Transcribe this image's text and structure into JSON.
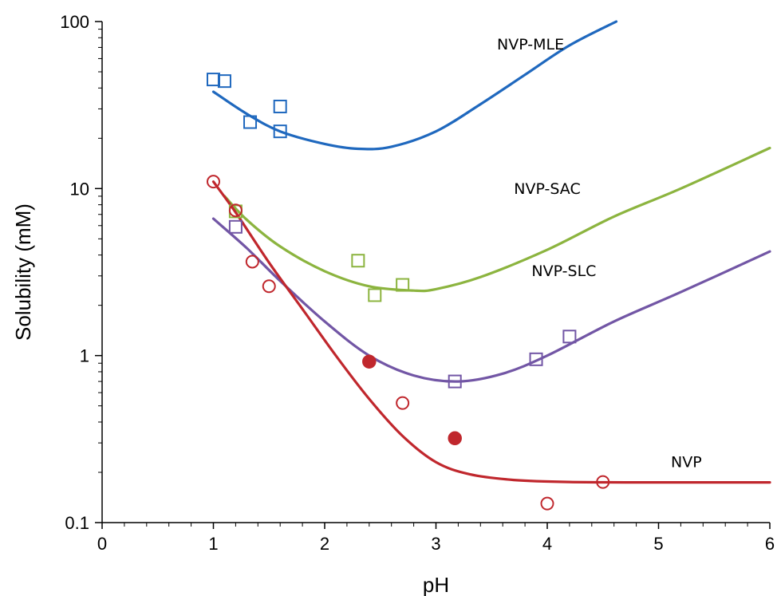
{
  "chart_data": {
    "type": "scatter",
    "title": "",
    "xlabel": "pH",
    "ylabel": "Solubility (mM)",
    "xlim": [
      0,
      6
    ],
    "ylim": [
      0.1,
      100
    ],
    "yscale": "log",
    "xticks": [
      "0",
      "1",
      "2",
      "3",
      "4",
      "5",
      "6"
    ],
    "yticks": [
      "0.1",
      "1",
      "10",
      "100"
    ],
    "grid": false,
    "legend": "none",
    "series": [
      {
        "name": "NVP-MLE",
        "color": "#1f68be",
        "marker": "open-square",
        "points": [
          [
            1.0,
            45
          ],
          [
            1.1,
            44
          ],
          [
            1.33,
            25
          ],
          [
            1.6,
            31
          ],
          [
            1.6,
            22
          ]
        ],
        "curve": [
          [
            1.0,
            38
          ],
          [
            1.3,
            28
          ],
          [
            1.6,
            22
          ],
          [
            2.0,
            18.5
          ],
          [
            2.3,
            17.3
          ],
          [
            2.6,
            17.8
          ],
          [
            3.0,
            22
          ],
          [
            3.4,
            32
          ],
          [
            3.8,
            48
          ],
          [
            4.2,
            72
          ],
          [
            4.62,
            100
          ]
        ]
      },
      {
        "name": "NVP-SAC",
        "color": "#8cb43f",
        "marker": "open-square",
        "points": [
          [
            1.2,
            7.3
          ],
          [
            2.3,
            3.7
          ],
          [
            2.45,
            2.3
          ],
          [
            2.7,
            2.65
          ]
        ],
        "curve": [
          [
            1.1,
            9.0
          ],
          [
            1.3,
            6.5
          ],
          [
            1.6,
            4.5
          ],
          [
            2.0,
            3.2
          ],
          [
            2.4,
            2.6
          ],
          [
            2.8,
            2.45
          ],
          [
            3.0,
            2.5
          ],
          [
            3.4,
            2.95
          ],
          [
            4.0,
            4.3
          ],
          [
            4.6,
            6.8
          ],
          [
            5.2,
            10.0
          ],
          [
            6.0,
            17.5
          ]
        ]
      },
      {
        "name": "NVP-SLC",
        "color": "#7256a5",
        "marker": "open-square",
        "points": [
          [
            1.2,
            5.9
          ],
          [
            3.17,
            0.7
          ],
          [
            3.9,
            0.95
          ],
          [
            4.2,
            1.3
          ]
        ],
        "curve": [
          [
            1.0,
            6.6
          ],
          [
            1.3,
            4.4
          ],
          [
            1.6,
            2.8
          ],
          [
            2.0,
            1.6
          ],
          [
            2.4,
            1.0
          ],
          [
            2.8,
            0.76
          ],
          [
            3.2,
            0.7
          ],
          [
            3.6,
            0.78
          ],
          [
            4.0,
            1.0
          ],
          [
            4.6,
            1.6
          ],
          [
            5.2,
            2.4
          ],
          [
            6.0,
            4.2
          ]
        ]
      },
      {
        "name": "NVP",
        "color": "#c0272d",
        "marker": "open-circle",
        "points": [
          [
            1.0,
            11
          ],
          [
            1.2,
            7.4
          ],
          [
            1.35,
            3.65
          ],
          [
            1.5,
            2.6
          ],
          [
            2.7,
            0.52
          ],
          [
            4.0,
            0.13
          ],
          [
            4.5,
            0.175
          ]
        ],
        "filled_points": [
          [
            2.4,
            0.92
          ],
          [
            3.17,
            0.32
          ]
        ],
        "curve": [
          [
            1.0,
            11
          ],
          [
            1.2,
            7.2
          ],
          [
            1.5,
            3.6
          ],
          [
            1.8,
            1.9
          ],
          [
            2.1,
            1.0
          ],
          [
            2.4,
            0.55
          ],
          [
            2.7,
            0.33
          ],
          [
            3.0,
            0.23
          ],
          [
            3.3,
            0.195
          ],
          [
            3.7,
            0.18
          ],
          [
            4.2,
            0.175
          ],
          [
            5.0,
            0.174
          ],
          [
            6.0,
            0.174
          ]
        ]
      }
    ],
    "annotations": [
      {
        "text": "NVP-MLE",
        "x": 3.85,
        "y": 68
      },
      {
        "text": "NVP-SAC",
        "x": 4.0,
        "y": 9.3
      },
      {
        "text": "NVP-SLC",
        "x": 4.15,
        "y": 3.0
      },
      {
        "text": "NVP",
        "x": 5.25,
        "y": 0.215
      }
    ]
  }
}
